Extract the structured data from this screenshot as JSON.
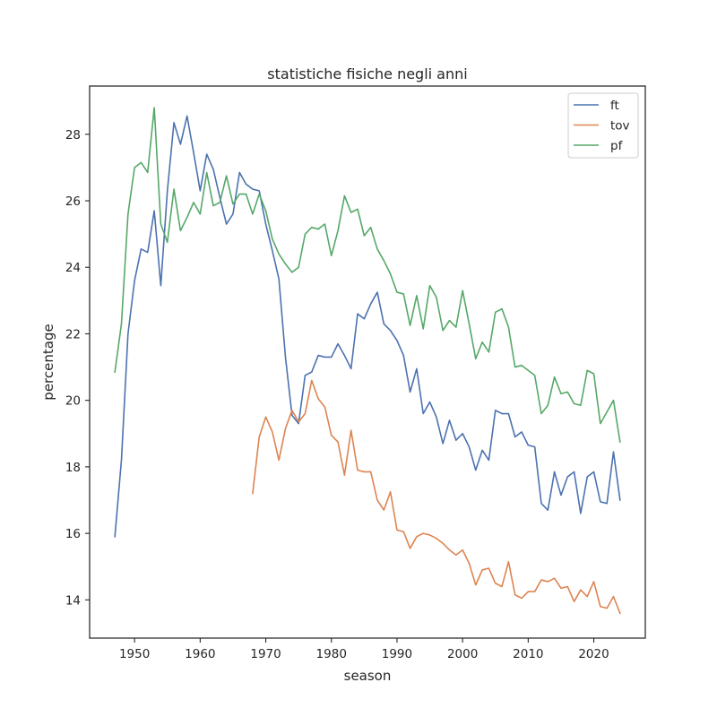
{
  "chart_data": {
    "type": "line",
    "title": "statistiche fisiche negli anni",
    "xlabel": "season",
    "ylabel": "percentage",
    "xlim": [
      1943.15,
      2027.85
    ],
    "ylim": [
      12.85,
      29.45
    ],
    "xticks": [
      1950,
      1960,
      1970,
      1980,
      1990,
      2000,
      2010,
      2020
    ],
    "yticks": [
      14,
      16,
      18,
      20,
      22,
      24,
      26,
      28
    ],
    "grid": false,
    "legend_position": "top-right",
    "series": [
      {
        "name": "ft",
        "color": "#4c72b0",
        "x": [
          1947,
          1948,
          1949,
          1950,
          1951,
          1952,
          1953,
          1954,
          1955,
          1956,
          1957,
          1958,
          1959,
          1960,
          1961,
          1962,
          1963,
          1964,
          1965,
          1966,
          1967,
          1968,
          1969,
          1970,
          1971,
          1972,
          1973,
          1974,
          1975,
          1976,
          1977,
          1978,
          1979,
          1980,
          1981,
          1982,
          1983,
          1984,
          1985,
          1986,
          1987,
          1988,
          1989,
          1990,
          1991,
          1992,
          1993,
          1994,
          1995,
          1996,
          1997,
          1998,
          1999,
          2000,
          2001,
          2002,
          2003,
          2004,
          2005,
          2006,
          2007,
          2008,
          2009,
          2010,
          2011,
          2012,
          2013,
          2014,
          2015,
          2016,
          2017,
          2018,
          2019,
          2020,
          2021,
          2022,
          2023,
          2024
        ],
        "y": [
          15.9,
          18.2,
          22.0,
          23.6,
          24.55,
          24.45,
          25.7,
          23.45,
          26.3,
          28.35,
          27.7,
          28.55,
          27.45,
          26.3,
          27.4,
          26.95,
          26.1,
          25.3,
          25.6,
          26.85,
          26.5,
          26.35,
          26.3,
          25.3,
          24.5,
          23.65,
          21.3,
          19.55,
          19.3,
          20.75,
          20.85,
          21.35,
          21.3,
          21.3,
          21.7,
          21.35,
          20.95,
          22.6,
          22.45,
          22.9,
          23.25,
          22.3,
          22.1,
          21.8,
          21.35,
          20.25,
          20.95,
          19.6,
          19.95,
          19.5,
          18.7,
          19.4,
          18.8,
          19.0,
          18.6,
          17.9,
          18.5,
          18.2,
          19.7,
          19.6,
          19.6,
          18.9,
          19.05,
          18.65,
          18.6,
          16.9,
          16.7,
          17.85,
          17.15,
          17.7,
          17.85,
          16.6,
          17.7,
          17.85,
          16.95,
          16.9,
          18.45,
          17.0
        ]
      },
      {
        "name": "tov",
        "color": "#dd8452",
        "x": [
          1968,
          1969,
          1970,
          1971,
          1972,
          1973,
          1974,
          1975,
          1976,
          1977,
          1978,
          1979,
          1980,
          1981,
          1982,
          1983,
          1984,
          1985,
          1986,
          1987,
          1988,
          1989,
          1990,
          1991,
          1992,
          1993,
          1994,
          1995,
          1996,
          1997,
          1998,
          1999,
          2000,
          2001,
          2002,
          2003,
          2004,
          2005,
          2006,
          2007,
          2008,
          2009,
          2010,
          2011,
          2012,
          2013,
          2014,
          2015,
          2016,
          2017,
          2018,
          2019,
          2020,
          2021,
          2022,
          2023,
          2024
        ],
        "y": [
          17.2,
          18.9,
          19.5,
          19.05,
          18.2,
          19.15,
          19.7,
          19.35,
          19.6,
          20.6,
          20.05,
          19.8,
          18.95,
          18.75,
          17.75,
          19.1,
          17.9,
          17.85,
          17.85,
          17.0,
          16.7,
          17.25,
          16.1,
          16.05,
          15.55,
          15.9,
          16.0,
          15.95,
          15.85,
          15.7,
          15.5,
          15.35,
          15.5,
          15.1,
          14.45,
          14.9,
          14.95,
          14.5,
          14.4,
          15.15,
          14.15,
          14.05,
          14.25,
          14.25,
          14.6,
          14.55,
          14.65,
          14.35,
          14.4,
          13.95,
          14.3,
          14.1,
          14.55,
          13.8,
          13.75,
          14.1,
          13.6
        ]
      },
      {
        "name": "pf",
        "color": "#55a868",
        "x": [
          1947,
          1948,
          1949,
          1950,
          1951,
          1952,
          1953,
          1954,
          1955,
          1956,
          1957,
          1958,
          1959,
          1960,
          1961,
          1962,
          1963,
          1964,
          1965,
          1966,
          1967,
          1968,
          1969,
          1970,
          1971,
          1972,
          1973,
          1974,
          1975,
          1976,
          1977,
          1978,
          1979,
          1980,
          1981,
          1982,
          1983,
          1984,
          1985,
          1986,
          1987,
          1988,
          1989,
          1990,
          1991,
          1992,
          1993,
          1994,
          1995,
          1996,
          1997,
          1998,
          1999,
          2000,
          2001,
          2002,
          2003,
          2004,
          2005,
          2006,
          2007,
          2008,
          2009,
          2010,
          2011,
          2012,
          2013,
          2014,
          2015,
          2016,
          2017,
          2018,
          2019,
          2020,
          2021,
          2022,
          2023,
          2024
        ],
        "y": [
          20.85,
          22.3,
          25.6,
          27.0,
          27.15,
          26.85,
          28.8,
          25.3,
          24.75,
          26.35,
          25.1,
          25.5,
          25.95,
          25.6,
          26.85,
          25.85,
          25.95,
          26.75,
          25.9,
          26.2,
          26.2,
          25.6,
          26.2,
          25.7,
          24.85,
          24.4,
          24.1,
          23.85,
          24.0,
          25.0,
          25.2,
          25.15,
          25.3,
          24.35,
          25.1,
          26.15,
          25.65,
          25.75,
          24.95,
          25.2,
          24.55,
          24.2,
          23.8,
          23.25,
          23.2,
          22.25,
          23.15,
          22.15,
          23.45,
          23.1,
          22.1,
          22.4,
          22.2,
          23.3,
          22.3,
          21.25,
          21.75,
          21.45,
          22.65,
          22.75,
          22.2,
          21.0,
          21.05,
          20.9,
          20.75,
          19.6,
          19.85,
          20.7,
          20.2,
          20.25,
          19.9,
          19.85,
          20.9,
          20.8,
          19.3,
          19.65,
          20.0,
          18.75
        ]
      }
    ]
  }
}
